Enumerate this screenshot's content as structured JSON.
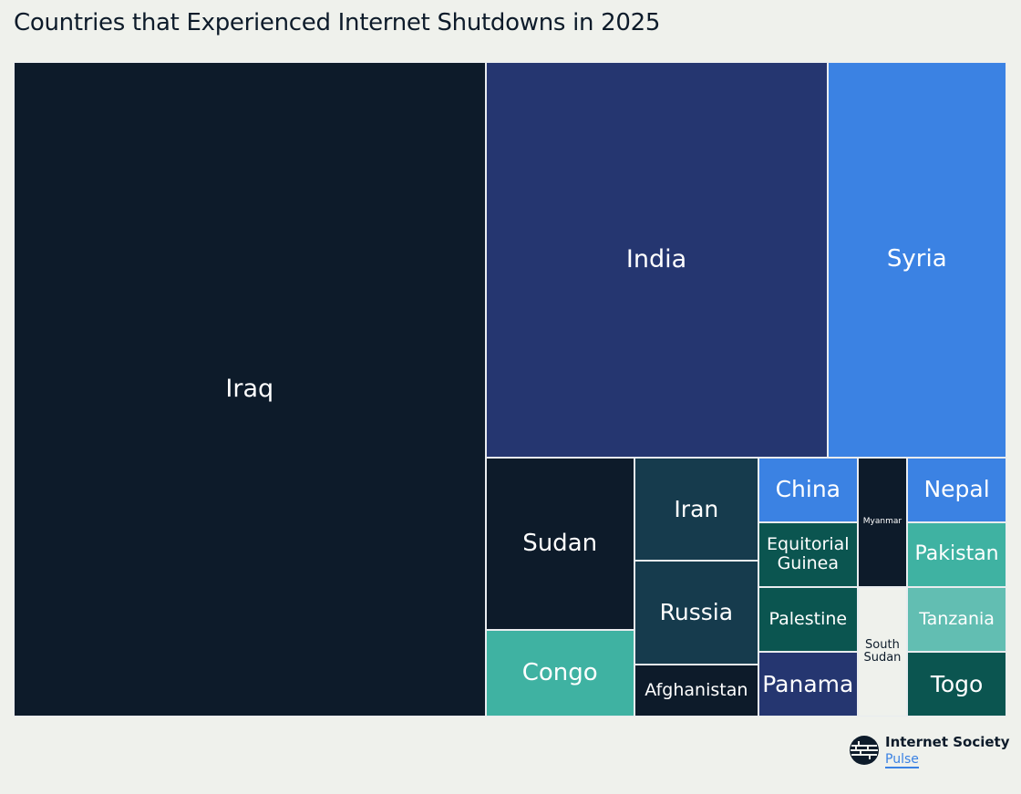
{
  "chart_data": {
    "type": "treemap",
    "title": "Countries that Experienced Internet Shutdowns in 2025",
    "items": [
      {
        "name": "Iraq",
        "value": 48,
        "color": "#0d1b2a",
        "text_color": "#ffffff"
      },
      {
        "name": "India",
        "value": 21,
        "color": "#253670",
        "text_color": "#ffffff"
      },
      {
        "name": "Syria",
        "value": 11,
        "color": "#3b82e3",
        "text_color": "#ffffff"
      },
      {
        "name": "Sudan",
        "value": 4,
        "color": "#0d1b2a",
        "text_color": "#ffffff"
      },
      {
        "name": "Congo",
        "value": 2,
        "color": "#3fb2a2",
        "text_color": "#ffffff"
      },
      {
        "name": "Iran",
        "value": 2,
        "color": "#163b4d",
        "text_color": "#ffffff"
      },
      {
        "name": "Russia",
        "value": 2,
        "color": "#163b4d",
        "text_color": "#ffffff"
      },
      {
        "name": "Afghanistan",
        "value": 1,
        "color": "#0d1b2a",
        "text_color": "#ffffff"
      },
      {
        "name": "China",
        "value": 1,
        "color": "#3b82e3",
        "text_color": "#ffffff"
      },
      {
        "name": "Equitorial Guinea",
        "value": 1,
        "color": "#0b5550",
        "text_color": "#ffffff"
      },
      {
        "name": "Palestine",
        "value": 1,
        "color": "#0b5550",
        "text_color": "#ffffff"
      },
      {
        "name": "Panama",
        "value": 1,
        "color": "#253670",
        "text_color": "#ffffff"
      },
      {
        "name": "Myanmar",
        "value": 1,
        "color": "#0d1b2a",
        "text_color": "#ffffff"
      },
      {
        "name": "South Sudan",
        "value": 1,
        "color": "#eff1ec",
        "text_color": "#0d1b2a"
      },
      {
        "name": "Nepal",
        "value": 1,
        "color": "#3b82e3",
        "text_color": "#ffffff"
      },
      {
        "name": "Pakistan",
        "value": 1,
        "color": "#3fb2a2",
        "text_color": "#ffffff"
      },
      {
        "name": "Tanzania",
        "value": 1,
        "color": "#62beb2",
        "text_color": "#ffffff"
      },
      {
        "name": "Togo",
        "value": 1,
        "color": "#0b5550",
        "text_color": "#ffffff"
      }
    ]
  },
  "labels": {
    "Equitorial Guinea": "Equitorial\nGuinea",
    "South Sudan": "South\nSudan"
  },
  "logo": {
    "name": "Internet Society",
    "sub": "Pulse",
    "icon": "globe-icon"
  }
}
